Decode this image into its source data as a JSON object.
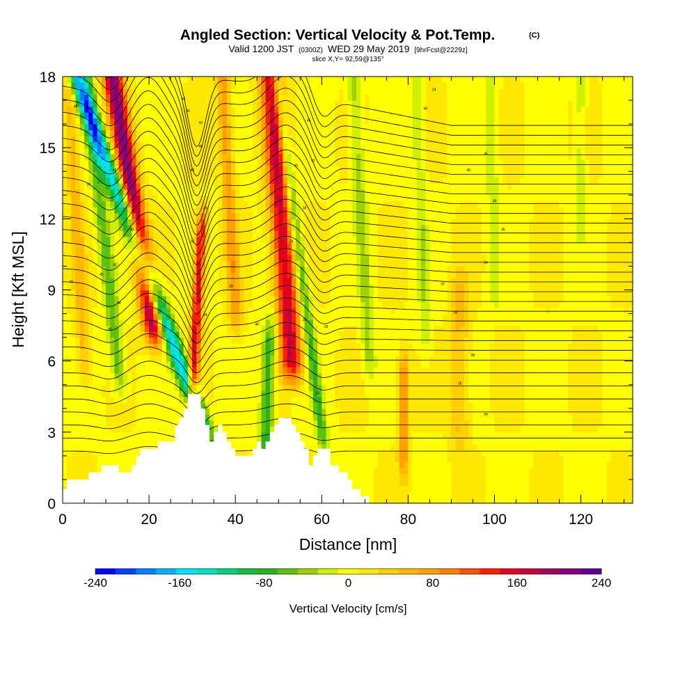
{
  "header": {
    "title": "Angled Section: Vertical Velocity & Pot.Temp.",
    "title_tag": "(C)",
    "valid_main": "Valid 1200 JST",
    "valid_zulu": "(0300Z)",
    "valid_date": "WED 29 May 2019",
    "valid_fcst": "[9hrFcst@2229z]",
    "slice": "slice X,Y= 92,59@135°"
  },
  "chart_data": {
    "type": "heatmap",
    "xlabel": "Distance [nm]",
    "ylabel": "Height [Kft MSL]",
    "xlim": [
      0,
      132
    ],
    "ylim": [
      0,
      18
    ],
    "x_ticks": [
      0,
      20,
      40,
      60,
      80,
      100,
      120
    ],
    "y_ticks": [
      0,
      3,
      6,
      9,
      12,
      15,
      18
    ],
    "colorbar": {
      "label": "Vertical Velocity [cm/s]",
      "min": -240,
      "max": 240,
      "tick_labels": [
        "-240",
        "-160",
        "-80",
        "0",
        "80",
        "160",
        "240"
      ],
      "colors": [
        "#0000ff",
        "#0040ff",
        "#0080ff",
        "#00b0ff",
        "#00e0ff",
        "#00e0c0",
        "#00d080",
        "#10c040",
        "#30b020",
        "#60c010",
        "#a0d000",
        "#d0f000",
        "#ffff00",
        "#ffe800",
        "#ffd000",
        "#ffb800",
        "#ffa000",
        "#ff8000",
        "#ff5000",
        "#ff2000",
        "#e00020",
        "#c00040",
        "#a00060",
        "#800080",
        "#600090"
      ]
    },
    "cores": [
      {
        "x": 21,
        "zlo": 7.5,
        "zhi": 18,
        "tilt": -0.9,
        "w": 200,
        "width": 2.2
      },
      {
        "x": 32,
        "zlo": 3.5,
        "zhi": 18,
        "tilt": -2.0,
        "w": -170,
        "width": 2.0
      },
      {
        "x": 30,
        "zlo": 4.5,
        "zhi": 11.5,
        "tilt": 0.3,
        "w": 150,
        "width": 1.2
      },
      {
        "x": 53,
        "zlo": 6.0,
        "zhi": 18,
        "tilt": -0.4,
        "w": 160,
        "width": 2.5
      },
      {
        "x": 47,
        "zlo": 2.5,
        "zhi": 7.0,
        "tilt": 0.2,
        "w": -90,
        "width": 1.5
      },
      {
        "x": 60,
        "zlo": 3.0,
        "zhi": 18,
        "tilt": -0.7,
        "w": -80,
        "width": 1.3
      },
      {
        "x": 13,
        "zlo": 5.5,
        "zhi": 18,
        "tilt": -0.6,
        "w": -70,
        "width": 1.6
      },
      {
        "x": 5,
        "zlo": 6.0,
        "zhi": 18,
        "tilt": -0.3,
        "w": 50,
        "width": 1.5
      },
      {
        "x": 79,
        "zlo": 2.0,
        "zhi": 5.5,
        "tilt": 0.0,
        "w": 90,
        "width": 1.2
      },
      {
        "x": 71,
        "zlo": 6.0,
        "zhi": 18,
        "tilt": -0.3,
        "w": -45,
        "width": 1.5
      },
      {
        "x": 84,
        "zlo": 7.0,
        "zhi": 18,
        "tilt": -0.2,
        "w": -35,
        "width": 1.3
      },
      {
        "x": 100,
        "zlo": 9.0,
        "zhi": 18,
        "tilt": -0.1,
        "w": -30,
        "width": 1.5
      },
      {
        "x": 120,
        "zlo": 12.0,
        "zhi": 18,
        "tilt": 0.0,
        "w": -30,
        "width": 1.2
      },
      {
        "x": 40,
        "zlo": 8.0,
        "zhi": 18,
        "tilt": -0.3,
        "w": 70,
        "width": 1.5
      },
      {
        "x": 92,
        "zlo": 3.0,
        "zhi": 9.0,
        "tilt": 0.0,
        "w": 45,
        "width": 2.0
      }
    ],
    "terrain": [
      [
        0,
        0.6
      ],
      [
        1,
        1.0
      ],
      [
        5,
        1.0
      ],
      [
        6,
        1.3
      ],
      [
        9,
        1.6
      ],
      [
        12,
        1.6
      ],
      [
        13,
        1.3
      ],
      [
        15,
        1.3
      ],
      [
        16,
        1.6
      ],
      [
        17,
        2.0
      ],
      [
        18,
        2.3
      ],
      [
        21,
        2.3
      ],
      [
        22,
        2.6
      ],
      [
        25,
        2.6
      ],
      [
        26,
        3.3
      ],
      [
        27,
        3.6
      ],
      [
        28,
        4.0
      ],
      [
        29,
        4.6
      ],
      [
        30,
        4.6
      ],
      [
        31,
        4.6
      ],
      [
        32,
        4.0
      ],
      [
        33,
        3.3
      ],
      [
        34,
        2.6
      ],
      [
        35,
        3.0
      ],
      [
        36,
        3.3
      ],
      [
        37,
        3.0
      ],
      [
        38,
        2.6
      ],
      [
        39,
        2.3
      ],
      [
        40,
        2.0
      ],
      [
        42,
        2.0
      ],
      [
        43,
        2.0
      ],
      [
        44,
        2.3
      ],
      [
        45,
        2.6
      ],
      [
        46,
        2.3
      ],
      [
        47,
        2.6
      ],
      [
        48,
        3.0
      ],
      [
        49,
        3.3
      ],
      [
        50,
        3.6
      ],
      [
        52,
        3.6
      ],
      [
        53,
        3.3
      ],
      [
        54,
        3.0
      ],
      [
        55,
        2.6
      ],
      [
        56,
        2.3
      ],
      [
        57,
        1.6
      ],
      [
        58,
        2.0
      ],
      [
        59,
        2.3
      ],
      [
        61,
        2.3
      ],
      [
        62,
        1.6
      ],
      [
        64,
        1.3
      ],
      [
        66,
        1.0
      ],
      [
        67,
        0.6
      ],
      [
        68,
        0.6
      ],
      [
        69,
        0.3
      ],
      [
        70,
        0.3
      ],
      [
        71,
        0.0
      ],
      [
        132,
        0.0
      ]
    ],
    "contour_labels": [
      {
        "x": 3,
        "y": 16.7,
        "text": "46"
      },
      {
        "x": 12,
        "y": 14.0,
        "text": "46"
      },
      {
        "x": 6,
        "y": 13.4,
        "text": "24"
      },
      {
        "x": 16,
        "y": 11.5,
        "text": "40"
      },
      {
        "x": 12,
        "y": 10.0,
        "text": "30"
      },
      {
        "x": 9,
        "y": 9.6,
        "text": "40"
      },
      {
        "x": 2,
        "y": 9.3,
        "text": "40"
      },
      {
        "x": 13,
        "y": 8.4,
        "text": "34"
      },
      {
        "x": 11,
        "y": 7.3,
        "text": "80"
      },
      {
        "x": 28,
        "y": 17.0,
        "text": "42"
      },
      {
        "x": 29,
        "y": 16.5,
        "text": "40"
      },
      {
        "x": 32,
        "y": 16.0,
        "text": "42"
      },
      {
        "x": 32,
        "y": 15.0,
        "text": "46"
      },
      {
        "x": 30,
        "y": 14.0,
        "text": "48"
      },
      {
        "x": 33,
        "y": 12.4,
        "text": "34"
      },
      {
        "x": 30,
        "y": 11.0,
        "text": "34"
      },
      {
        "x": 39,
        "y": 9.1,
        "text": "20"
      },
      {
        "x": 33,
        "y": 7.9,
        "text": "24"
      },
      {
        "x": 30,
        "y": 6.8,
        "text": "20"
      },
      {
        "x": 33,
        "y": 4.0,
        "text": "24"
      },
      {
        "x": 45,
        "y": 7.5,
        "text": "48"
      },
      {
        "x": 57,
        "y": 16.1,
        "text": "46"
      },
      {
        "x": 58,
        "y": 14.4,
        "text": "42"
      },
      {
        "x": 54,
        "y": 14.2,
        "text": "40"
      },
      {
        "x": 56,
        "y": 12.4,
        "text": "36"
      },
      {
        "x": 53,
        "y": 11.0,
        "text": "34"
      },
      {
        "x": 53,
        "y": 9.5,
        "text": "32"
      },
      {
        "x": 56,
        "y": 7.7,
        "text": "30"
      },
      {
        "x": 61,
        "y": 7.4,
        "text": "28"
      },
      {
        "x": 59,
        "y": 4.6,
        "text": "24"
      },
      {
        "x": 86,
        "y": 17.4,
        "text": "24"
      },
      {
        "x": 84,
        "y": 16.6,
        "text": "44"
      },
      {
        "x": 98,
        "y": 14.7,
        "text": "46"
      },
      {
        "x": 94,
        "y": 14.0,
        "text": "40"
      },
      {
        "x": 100,
        "y": 12.7,
        "text": "38"
      },
      {
        "x": 102,
        "y": 11.5,
        "text": "36"
      },
      {
        "x": 98,
        "y": 10.1,
        "text": "34"
      },
      {
        "x": 88,
        "y": 9.2,
        "text": "32"
      },
      {
        "x": 91,
        "y": 8.0,
        "text": "30"
      },
      {
        "x": 95,
        "y": 6.2,
        "text": "28"
      },
      {
        "x": 92,
        "y": 5.0,
        "text": "26"
      },
      {
        "x": 98,
        "y": 3.7,
        "text": "24"
      }
    ]
  }
}
